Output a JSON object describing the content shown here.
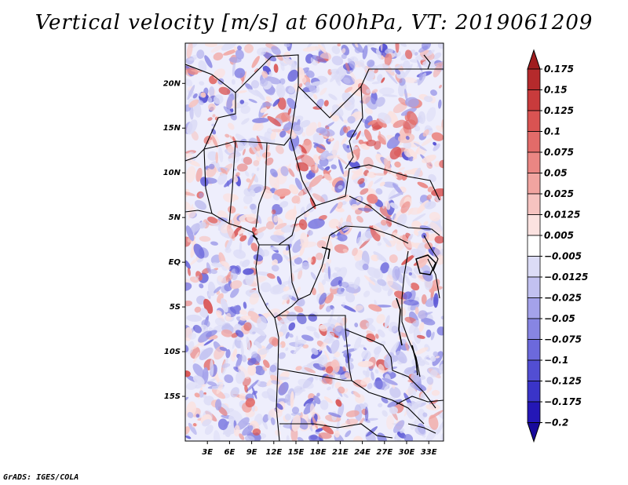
{
  "title": "Vertical velocity [m/s] at 600hPa, VT: 2019061209",
  "credit": "GrADS: IGES/COLA",
  "map": {
    "lat_ticks": [
      "20N",
      "15N",
      "10N",
      "5N",
      "EQ",
      "5S",
      "10S",
      "15S"
    ],
    "lat_values": [
      20,
      15,
      10,
      5,
      0,
      -5,
      -10,
      -15
    ],
    "lon_ticks": [
      "3E",
      "6E",
      "9E",
      "12E",
      "15E",
      "18E",
      "21E",
      "24E",
      "27E",
      "30E",
      "33E"
    ],
    "lon_values": [
      3,
      6,
      9,
      12,
      15,
      18,
      21,
      24,
      27,
      30,
      33
    ],
    "lat_range": [
      -20,
      24.5
    ],
    "lon_range": [
      0,
      35
    ]
  },
  "colorbar": {
    "labels": [
      "0.175",
      "0.15",
      "0.125",
      "0.1",
      "0.075",
      "0.05",
      "0.025",
      "0.0125",
      "0.005",
      "−0.005",
      "−0.0125",
      "−0.025",
      "−0.05",
      "−0.075",
      "−0.1",
      "−0.125",
      "−0.175",
      "−0.2"
    ],
    "colors": [
      "#a01d1f",
      "#b52a2c",
      "#c83b3c",
      "#d95352",
      "#e26b69",
      "#ea8683",
      "#f1a4a0",
      "#f6c3c0",
      "#fbe2e0",
      "#ffffff",
      "#dcdcf6",
      "#c2c1f0",
      "#a4a2ea",
      "#8785e3",
      "#6c69dc",
      "#524ed3",
      "#3a34c8",
      "#2417b6",
      "#180a9c"
    ]
  }
}
